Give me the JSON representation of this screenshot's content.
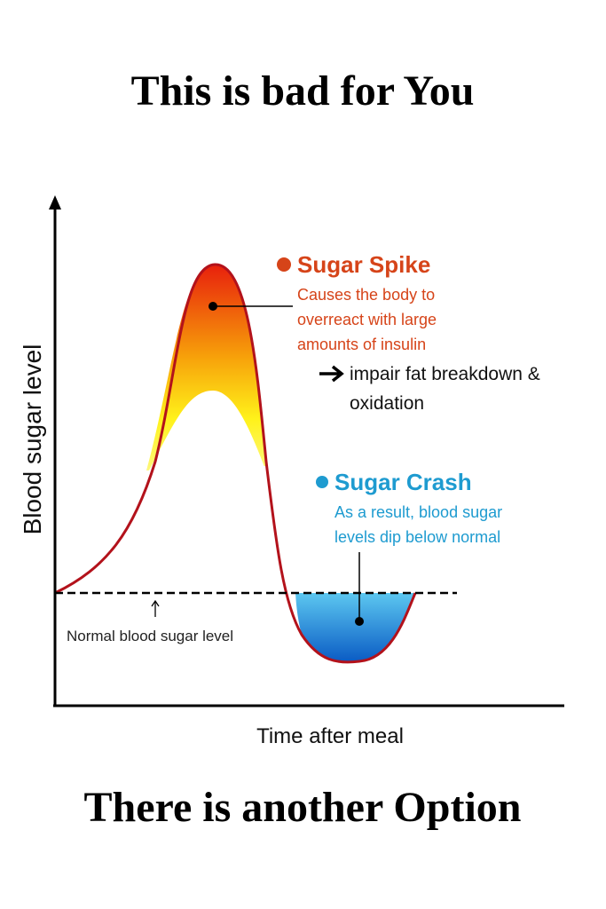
{
  "header": {
    "title": "This is bad for You"
  },
  "diagram": {
    "y_axis_label": "Blood sugar level",
    "x_axis_label": "Time after meal",
    "baseline_label": "Normal blood sugar level",
    "spike": {
      "title": "Sugar Spike",
      "lines": [
        "Causes the body to",
        "overreact with large",
        "amounts of insulin"
      ],
      "effect_lines": [
        "impair fat breakdown &",
        "oxidation"
      ]
    },
    "crash": {
      "title": "Sugar Crash",
      "lines": [
        "As a result, blood sugar",
        "levels dip below normal"
      ]
    }
  },
  "footer": {
    "title": "There is another Option"
  }
}
